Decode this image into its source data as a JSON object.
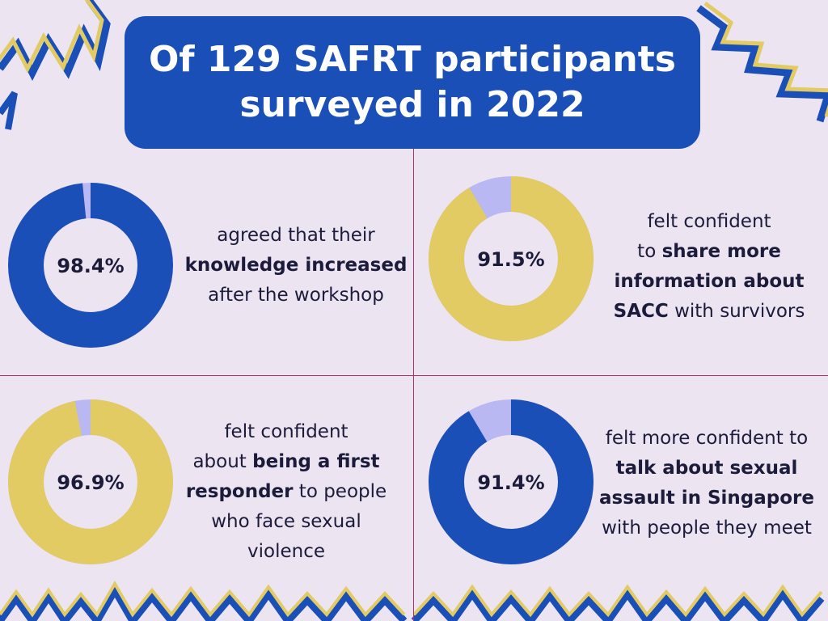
{
  "header": {
    "title_line1": "Of 129 SAFRT participants",
    "title_line2": "surveyed in 2022"
  },
  "colors": {
    "background": "#ede4f2",
    "title_bg": "#1b4fb8",
    "blue": "#1b4fb8",
    "yellow": "#e2cb62",
    "lavender": "#b9b8f2",
    "divider": "#b0306e"
  },
  "chart_data": [
    {
      "type": "pie",
      "label": "98.4%",
      "value": 98.4,
      "color": "#1b4fb8",
      "caption": [
        [
          {
            "t": "agreed that their",
            "b": false
          }
        ],
        [
          {
            "t": "knowledge increased",
            "b": true
          }
        ],
        [
          {
            "t": "after the workshop",
            "b": false
          }
        ]
      ]
    },
    {
      "type": "pie",
      "label": "91.5%",
      "value": 91.5,
      "color": "#e2cb62",
      "caption": [
        [
          {
            "t": "felt confident",
            "b": false
          }
        ],
        [
          {
            "t": "to ",
            "b": false
          },
          {
            "t": "share more",
            "b": true
          }
        ],
        [
          {
            "t": "information about",
            "b": true
          }
        ],
        [
          {
            "t": "SACC",
            "b": true
          },
          {
            "t": " with survivors",
            "b": false
          }
        ]
      ]
    },
    {
      "type": "pie",
      "label": "96.9%",
      "value": 96.9,
      "color": "#e2cb62",
      "caption": [
        [
          {
            "t": "felt confident",
            "b": false
          }
        ],
        [
          {
            "t": "about ",
            "b": false
          },
          {
            "t": "being a first",
            "b": true
          }
        ],
        [
          {
            "t": "responder",
            "b": true
          },
          {
            "t": " to people",
            "b": false
          }
        ],
        [
          {
            "t": "who face sexual",
            "b": false
          }
        ],
        [
          {
            "t": "violence",
            "b": false
          }
        ]
      ]
    },
    {
      "type": "pie",
      "label": "91.4%",
      "value": 91.4,
      "color": "#1b4fb8",
      "caption": [
        [
          {
            "t": "felt more confident to",
            "b": false
          }
        ],
        [
          {
            "t": "talk about sexual",
            "b": true
          }
        ],
        [
          {
            "t": "assault in Singapore",
            "b": true
          }
        ],
        [
          {
            "t": "with people they meet",
            "b": false
          }
        ]
      ]
    }
  ]
}
